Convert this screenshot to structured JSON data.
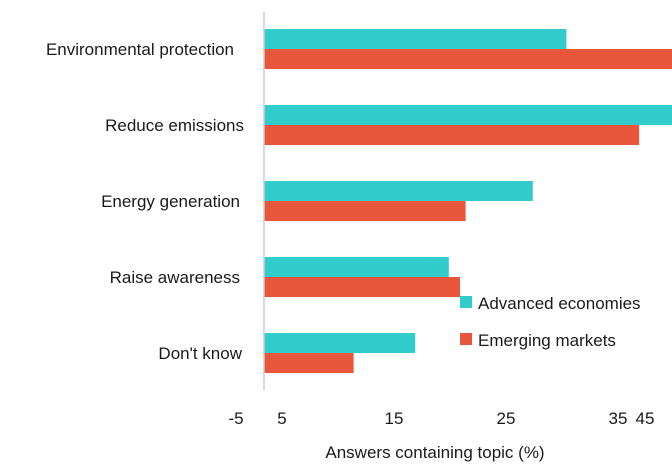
{
  "chart_data": {
    "type": "bar",
    "orientation": "horizontal",
    "categories": [
      "Environmental protection",
      "Reduce emissions",
      "Energy generation",
      "Raise awareness",
      "Don't know"
    ],
    "series": [
      {
        "name": "Advanced economies",
        "color": "#33cccc",
        "values": [
          27,
          36.5,
          24,
          16.5,
          13.5
        ]
      },
      {
        "name": "Emerging markets",
        "color": "#e8573c",
        "values": [
          41,
          33.5,
          18,
          17.5,
          8
        ]
      }
    ],
    "xticks": [
      "-5",
      "5",
      "15",
      "25",
      "35",
      "45"
    ],
    "xlim": [
      -5,
      45
    ],
    "xlabel": "Answers containing topic (%)",
    "ylabel": "",
    "title": "",
    "grid": false,
    "legend_position": "bottom-right"
  }
}
